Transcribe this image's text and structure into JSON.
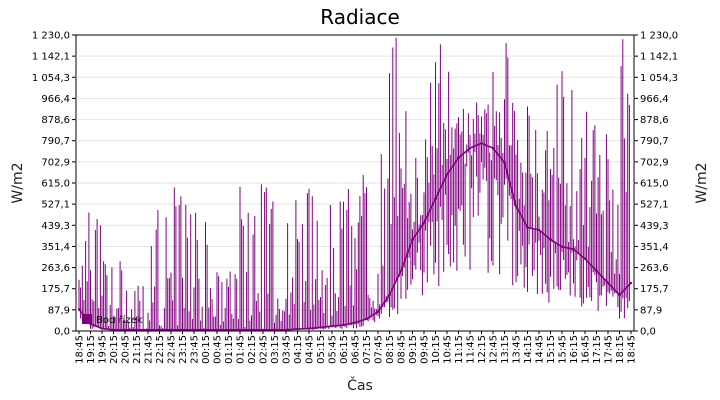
{
  "chart_data": {
    "type": "line",
    "title": "Radiace",
    "xlabel": "Čas",
    "ylabel": "W/m2",
    "ylim": [
      0,
      1230
    ],
    "y_ticks": [
      "0,0",
      "87,9",
      "175,7",
      "263,6",
      "351,4",
      "439,3",
      "527,1",
      "615,0",
      "702,9",
      "790,7",
      "878,6",
      "966,4",
      "1 054,3",
      "1 142,1",
      "1 230,0"
    ],
    "x_ticks": [
      "18:45",
      "19:15",
      "19:45",
      "20:15",
      "20:45",
      "21:15",
      "21:45",
      "22:15",
      "22:45",
      "23:15",
      "23:45",
      "00:15",
      "00:45",
      "01:15",
      "01:45",
      "02:15",
      "02:45",
      "03:15",
      "03:45",
      "04:15",
      "04:45",
      "05:15",
      "05:45",
      "06:15",
      "06:45",
      "07:15",
      "07:45",
      "08:15",
      "08:45",
      "09:15",
      "09:45",
      "10:15",
      "10:45",
      "11:15",
      "11:45",
      "12:15",
      "12:45",
      "13:15",
      "13:45",
      "14:15",
      "14:45",
      "15:15",
      "15:45",
      "16:15",
      "16:45",
      "17:15",
      "17:45",
      "18:15",
      "18:45"
    ],
    "grid": true,
    "legend": "bottom-left",
    "series": [
      {
        "name": "Bod řízek",
        "color": "#800080",
        "x": [
          "18:45",
          "19:15",
          "19:45",
          "20:15",
          "20:45",
          "21:15",
          "21:45",
          "22:15",
          "22:45",
          "23:15",
          "23:45",
          "00:15",
          "00:45",
          "01:15",
          "01:45",
          "02:15",
          "02:45",
          "03:15",
          "03:45",
          "04:15",
          "04:45",
          "05:15",
          "05:45",
          "06:15",
          "06:45",
          "07:15",
          "07:45",
          "08:15",
          "08:45",
          "09:15",
          "09:45",
          "10:15",
          "10:45",
          "11:15",
          "11:45",
          "12:15",
          "12:45",
          "13:15",
          "13:45",
          "14:15",
          "14:45",
          "15:15",
          "15:45",
          "16:15",
          "16:45",
          "17:15",
          "17:45",
          "18:15",
          "18:45"
        ],
        "values": [
          90,
          30,
          10,
          5,
          5,
          5,
          5,
          5,
          5,
          5,
          5,
          5,
          5,
          5,
          5,
          5,
          5,
          5,
          5,
          8,
          10,
          15,
          20,
          25,
          35,
          50,
          80,
          150,
          250,
          380,
          450,
          550,
          650,
          720,
          760,
          780,
          760,
          700,
          520,
          430,
          420,
          380,
          350,
          340,
          300,
          250,
          200,
          150,
          200
        ],
        "peaks": [
          640,
          620,
          380,
          300,
          250,
          200,
          600,
          600,
          620,
          620,
          600,
          600,
          250,
          300,
          620,
          620,
          620,
          620,
          630,
          640,
          650,
          620,
          620,
          620,
          700,
          600,
          750,
          1230,
          1000,
          900,
          1230,
          1230,
          1200,
          1230,
          1230,
          1230,
          1230,
          1230,
          1100,
          1000,
          1050,
          1150,
          1100,
          1000,
          950,
          1000,
          1230,
          1230,
          700
        ]
      }
    ]
  }
}
